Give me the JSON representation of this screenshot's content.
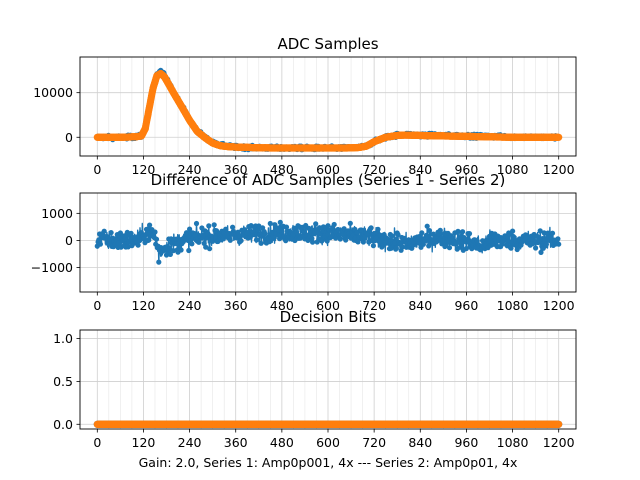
{
  "figure_caption": "Gain: 2.0, Series 1: Amp0p001, 4x --- Series 2: Amp0p01, 4x",
  "colors": {
    "series1": "#1f77b4",
    "series2": "#ff7f0e"
  },
  "chart_data": [
    {
      "type": "line",
      "title": "ADC Samples",
      "xlabel": "",
      "ylabel": "",
      "xlim": [
        -45,
        1245
      ],
      "ylim": [
        -4200,
        18000
      ],
      "xticks": [
        0,
        120,
        240,
        360,
        480,
        600,
        720,
        840,
        960,
        1080,
        1200
      ],
      "yticks": [
        0,
        10000
      ],
      "ytick_labels": [
        "0",
        "10000"
      ],
      "grid": true,
      "series": [
        {
          "name": "Series 1",
          "markers": true,
          "noise": 500,
          "x": [
            0,
            60,
            100,
            115,
            125,
            135,
            145,
            155,
            165,
            175,
            185,
            200,
            220,
            240,
            260,
            280,
            300,
            320,
            340,
            360,
            400,
            450,
            500,
            550,
            600,
            650,
            680,
            700,
            720,
            750,
            780,
            800,
            840,
            900,
            960,
            1020,
            1080,
            1140,
            1200
          ],
          "values": [
            0,
            0,
            100,
            300,
            2000,
            6500,
            11000,
            14000,
            14700,
            14000,
            12500,
            10000,
            7000,
            4000,
            1500,
            0,
            -1200,
            -1800,
            -2000,
            -2200,
            -2300,
            -2400,
            -2400,
            -2400,
            -2400,
            -2400,
            -2300,
            -2000,
            -1000,
            0,
            500,
            600,
            500,
            400,
            300,
            200,
            100,
            0,
            0
          ]
        },
        {
          "name": "Series 2",
          "markers": true,
          "noise": 0,
          "x": [
            0,
            60,
            100,
            115,
            125,
            135,
            145,
            155,
            165,
            175,
            185,
            200,
            220,
            240,
            260,
            280,
            300,
            320,
            340,
            360,
            400,
            450,
            500,
            550,
            600,
            650,
            680,
            700,
            720,
            750,
            780,
            800,
            840,
            900,
            960,
            1020,
            1080,
            1140,
            1200
          ],
          "values": [
            0,
            0,
            100,
            300,
            2000,
            6500,
            11000,
            13800,
            14300,
            13500,
            12000,
            9700,
            6800,
            3800,
            1300,
            -100,
            -1300,
            -1900,
            -2100,
            -2200,
            -2300,
            -2400,
            -2400,
            -2400,
            -2400,
            -2400,
            -2300,
            -2000,
            -1000,
            0,
            400,
            500,
            400,
            300,
            200,
            100,
            0,
            0,
            0
          ]
        }
      ]
    },
    {
      "type": "line",
      "title": "Difference of ADC Samples (Series 1 - Series 2)",
      "xlabel": "",
      "ylabel": "",
      "xlim": [
        -45,
        1245
      ],
      "ylim": [
        -1900,
        1750
      ],
      "xticks": [
        0,
        120,
        240,
        360,
        480,
        600,
        720,
        840,
        960,
        1080,
        1200
      ],
      "yticks": [
        -1000,
        0,
        1000
      ],
      "ytick_labels": [
        "−1000",
        "0",
        "1000"
      ],
      "grid": true,
      "series": [
        {
          "name": "Series 1 - Series 2",
          "markers": true,
          "noise": 450,
          "x": [
            0,
            100,
            130,
            150,
            160,
            170,
            200,
            240,
            300,
            360,
            420,
            480,
            540,
            600,
            660,
            700,
            720,
            760,
            800,
            840,
            900,
            960,
            1000,
            1020,
            1080,
            1140,
            1200
          ],
          "values": [
            0,
            0,
            300,
            200,
            -500,
            -300,
            -100,
            100,
            150,
            200,
            250,
            300,
            300,
            250,
            200,
            150,
            100,
            0,
            -100,
            0,
            100,
            0,
            -200,
            0,
            0,
            0,
            0
          ]
        }
      ]
    },
    {
      "type": "line",
      "title": "Decision Bits",
      "xlabel": "Gain: 2.0, Series 1: Amp0p001, 4x --- Series 2: Amp0p01, 4x",
      "ylabel": "",
      "xlim": [
        -45,
        1245
      ],
      "ylim": [
        -0.055,
        1.1
      ],
      "xticks": [
        0,
        120,
        240,
        360,
        480,
        600,
        720,
        840,
        960,
        1080,
        1200
      ],
      "yticks": [
        0.0,
        0.5,
        1.0
      ],
      "ytick_labels": [
        "0.0",
        "0.5",
        "1.0"
      ],
      "grid": true,
      "series": [
        {
          "name": "Series 1",
          "markers": true,
          "noise": 0,
          "x": [
            0,
            1200
          ],
          "values": [
            0,
            0
          ]
        },
        {
          "name": "Series 2",
          "markers": true,
          "noise": 0,
          "x": [
            0,
            1200
          ],
          "values": [
            0,
            0
          ]
        }
      ]
    }
  ]
}
